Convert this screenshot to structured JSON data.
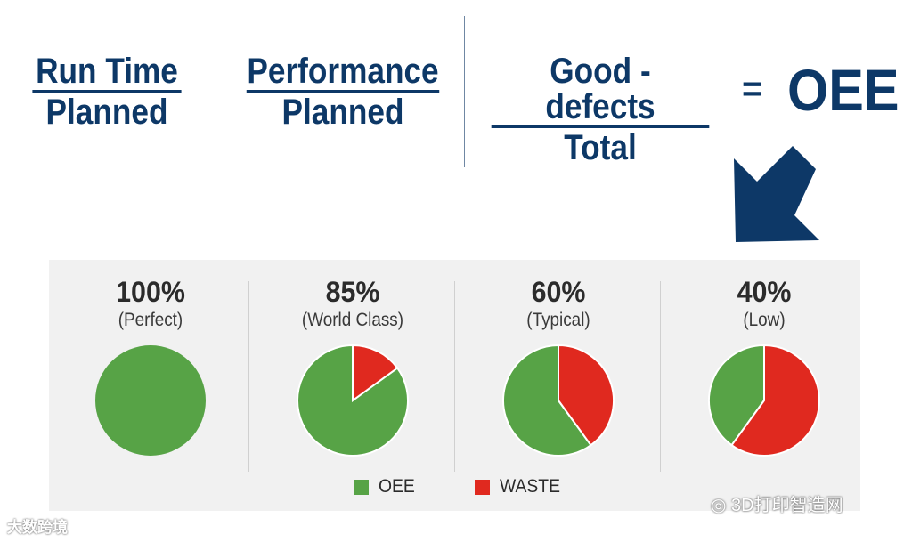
{
  "formula": {
    "terms": [
      {
        "numerator": "Run Time",
        "denominator": "Planned"
      },
      {
        "numerator": "Performance",
        "denominator": "Planned"
      },
      {
        "numerator": "Good - defects",
        "denominator": "Total"
      }
    ],
    "equals": "=",
    "result": "OEE"
  },
  "chart_data": {
    "type": "pie",
    "slices": [
      "OEE",
      "WASTE"
    ],
    "colors": {
      "OEE": "#57a346",
      "WASTE": "#e0291f"
    },
    "charts": [
      {
        "label": "100%",
        "subtitle": "(Perfect)",
        "values": [
          100,
          0
        ]
      },
      {
        "label": "85%",
        "subtitle": "(World Class)",
        "values": [
          85,
          15
        ]
      },
      {
        "label": "60%",
        "subtitle": "(Typical)",
        "values": [
          60,
          40
        ]
      },
      {
        "label": "40%",
        "subtitle": "(Low)",
        "values": [
          40,
          60
        ]
      }
    ],
    "legend": [
      {
        "name": "OEE",
        "color": "#57a346"
      },
      {
        "name": "WASTE",
        "color": "#e0291f"
      }
    ],
    "legend_position": "bottom"
  },
  "watermarks": {
    "left": "大数跨境",
    "right": "3D打印智造网"
  },
  "icons": {
    "arrow": "arrow-down-left-icon",
    "wechat": "wechat-icon"
  }
}
